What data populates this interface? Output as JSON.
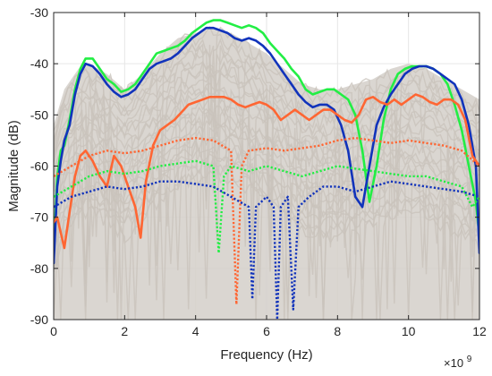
{
  "chart_data": {
    "type": "line",
    "title": "",
    "xlabel": "Frequency (Hz)",
    "ylabel": "Magnitude (dB)",
    "x_exponent_base": "×10",
    "x_exponent_power": "9",
    "xlim": [
      0,
      12
    ],
    "ylim": [
      -90,
      -30
    ],
    "xticks": [
      0,
      2,
      4,
      6,
      8,
      10,
      12
    ],
    "yticks": [
      -30,
      -40,
      -50,
      -60,
      -70,
      -80,
      -90
    ],
    "grid": true,
    "colors": {
      "background_series": "#d4cfc9",
      "green": "#22ee44",
      "blue": "#1133bb",
      "orange": "#ff6633",
      "grid": "#e6e6e6",
      "axis": "#262626"
    },
    "background_band": {
      "upper": [
        [
          0,
          -52
        ],
        [
          0.3,
          -45
        ],
        [
          0.7,
          -41
        ],
        [
          1,
          -40
        ],
        [
          1.5,
          -42
        ],
        [
          2,
          -45
        ],
        [
          2.5,
          -42
        ],
        [
          3,
          -38
        ],
        [
          3.5,
          -35
        ],
        [
          4,
          -34
        ],
        [
          4.5,
          -33
        ],
        [
          5,
          -34
        ],
        [
          5.5,
          -36
        ],
        [
          6,
          -38
        ],
        [
          6.5,
          -41
        ],
        [
          7,
          -44
        ],
        [
          7.5,
          -45
        ],
        [
          8,
          -45
        ],
        [
          8.5,
          -44
        ],
        [
          9,
          -43
        ],
        [
          9.5,
          -41
        ],
        [
          10,
          -40
        ],
        [
          10.5,
          -41
        ],
        [
          11,
          -43
        ],
        [
          11.5,
          -45
        ],
        [
          12,
          -47
        ]
      ],
      "lower": [
        [
          0,
          -90
        ],
        [
          12,
          -90
        ]
      ]
    },
    "series": [
      {
        "style": "solid",
        "color": "#22ee44",
        "x": [
          0,
          0.1,
          0.2,
          0.3,
          0.45,
          0.6,
          0.75,
          0.9,
          1.1,
          1.3,
          1.5,
          1.7,
          1.9,
          2.1,
          2.3,
          2.5,
          2.7,
          2.9,
          3.1,
          3.3,
          3.5,
          3.7,
          3.9,
          4.1,
          4.3,
          4.5,
          4.7,
          4.9,
          5.1,
          5.3,
          5.5,
          5.7,
          5.9,
          6.1,
          6.3,
          6.5,
          6.7,
          6.9,
          7.1,
          7.3,
          7.5,
          7.7,
          7.9,
          8.1,
          8.3,
          8.5,
          8.7,
          8.9,
          9.1,
          9.3,
          9.5,
          9.7,
          9.9,
          10.1,
          10.3,
          10.5,
          10.7,
          10.9,
          11.1,
          11.3,
          11.5,
          11.7,
          11.9,
          12
        ],
        "y": [
          -77,
          -62,
          -57,
          -56,
          -51,
          -45,
          -41,
          -39,
          -39,
          -41,
          -43,
          -44,
          -45.5,
          -45,
          -44,
          -42,
          -40,
          -38,
          -37.5,
          -37,
          -36.5,
          -35.5,
          -34,
          -33,
          -32,
          -31.5,
          -31.5,
          -32,
          -32.5,
          -33,
          -32.5,
          -33,
          -34,
          -36,
          -37.5,
          -39,
          -41,
          -42.5,
          -45,
          -46,
          -45.5,
          -45,
          -45,
          -46,
          -47,
          -50,
          -57,
          -67,
          -60,
          -51,
          -45,
          -42,
          -41,
          -40.5,
          -40.5,
          -40.5,
          -41,
          -42,
          -44,
          -48,
          -53,
          -60,
          -67,
          -74
        ]
      },
      {
        "style": "solid",
        "color": "#1133bb",
        "x": [
          0,
          0.1,
          0.2,
          0.3,
          0.45,
          0.6,
          0.75,
          0.9,
          1.1,
          1.3,
          1.5,
          1.7,
          1.9,
          2.1,
          2.3,
          2.5,
          2.7,
          2.9,
          3.1,
          3.3,
          3.5,
          3.7,
          3.9,
          4.1,
          4.3,
          4.5,
          4.7,
          4.9,
          5.1,
          5.3,
          5.5,
          5.7,
          5.9,
          6.1,
          6.3,
          6.5,
          6.7,
          6.9,
          7.1,
          7.3,
          7.5,
          7.7,
          7.9,
          8.1,
          8.3,
          8.5,
          8.7,
          8.9,
          9.1,
          9.3,
          9.5,
          9.7,
          9.9,
          10.1,
          10.3,
          10.5,
          10.7,
          10.9,
          11.1,
          11.3,
          11.5,
          11.7,
          11.9,
          12
        ],
        "y": [
          -79,
          -64,
          -59,
          -55,
          -52,
          -46,
          -42,
          -40,
          -40.5,
          -42,
          -44,
          -45.5,
          -46.5,
          -46,
          -45,
          -43,
          -41,
          -40,
          -39.5,
          -39,
          -38,
          -36.5,
          -35,
          -34,
          -33,
          -33,
          -33.5,
          -34,
          -35,
          -35.5,
          -35,
          -35.5,
          -36.5,
          -38,
          -40,
          -42,
          -44,
          -46,
          -47.5,
          -48.5,
          -48,
          -48,
          -49,
          -52,
          -57,
          -66,
          -68,
          -60,
          -52,
          -48.5,
          -46,
          -44,
          -42,
          -41,
          -40.5,
          -40.5,
          -41,
          -42,
          -43,
          -44,
          -47,
          -52,
          -60,
          -77
        ]
      },
      {
        "style": "solid",
        "color": "#ff6633",
        "x": [
          0,
          0.1,
          0.2,
          0.3,
          0.45,
          0.6,
          0.75,
          0.9,
          1.1,
          1.3,
          1.5,
          1.7,
          1.9,
          2.1,
          2.3,
          2.45,
          2.6,
          2.8,
          3.0,
          3.2,
          3.4,
          3.6,
          3.8,
          4.0,
          4.2,
          4.4,
          4.6,
          4.8,
          5.0,
          5.2,
          5.4,
          5.6,
          5.8,
          6.0,
          6.2,
          6.4,
          6.6,
          6.8,
          7.0,
          7.2,
          7.4,
          7.6,
          7.8,
          8.0,
          8.2,
          8.4,
          8.6,
          8.8,
          9.0,
          9.2,
          9.4,
          9.6,
          9.8,
          10.0,
          10.2,
          10.4,
          10.6,
          10.8,
          11.0,
          11.2,
          11.4,
          11.6,
          11.8,
          12
        ],
        "y": [
          -71,
          -70,
          -73,
          -76,
          -69,
          -62,
          -58,
          -57,
          -59,
          -62,
          -64,
          -58,
          -60,
          -64,
          -68,
          -74,
          -63,
          -56,
          -53,
          -52,
          -51,
          -49.5,
          -48,
          -47.5,
          -47,
          -46.5,
          -46.5,
          -46.5,
          -47,
          -48,
          -48.5,
          -48,
          -47.5,
          -48,
          -49,
          -51,
          -50,
          -49,
          -50,
          -51,
          -50,
          -49,
          -49,
          -50,
          -51,
          -51.5,
          -50,
          -47,
          -46.5,
          -47.5,
          -48,
          -47,
          -48,
          -47,
          -46,
          -46.5,
          -47.5,
          -48,
          -47,
          -47,
          -48,
          -51,
          -58,
          -60
        ]
      },
      {
        "style": "dotted",
        "color": "#ff6633",
        "x": [
          0,
          0.5,
          1.0,
          1.5,
          2.0,
          2.5,
          3.0,
          3.5,
          4.0,
          4.5,
          5.0,
          5.15,
          5.3,
          5.5,
          6.0,
          6.5,
          7.0,
          7.5,
          8.0,
          8.5,
          9.0,
          9.5,
          10.0,
          10.5,
          11.0,
          11.5,
          12
        ],
        "y": [
          -62,
          -60,
          -58,
          -57,
          -57.5,
          -57,
          -56,
          -55,
          -54.5,
          -55,
          -57,
          -87,
          -60,
          -57,
          -56.5,
          -57,
          -56.5,
          -56,
          -55,
          -54.5,
          -55,
          -55.5,
          -55,
          -55.5,
          -56,
          -57,
          -60
        ]
      },
      {
        "style": "dotted",
        "color": "#22ee44",
        "x": [
          0,
          0.5,
          1.0,
          1.5,
          2.0,
          2.5,
          3.0,
          3.5,
          4.0,
          4.5,
          4.65,
          4.8,
          5.0,
          5.5,
          6.0,
          6.5,
          7.0,
          7.5,
          8.0,
          8.5,
          9.0,
          9.5,
          10.0,
          10.5,
          11.0,
          11.5,
          11.8,
          12
        ],
        "y": [
          -66,
          -64,
          -62,
          -61,
          -61.5,
          -61,
          -60,
          -59.5,
          -59,
          -60,
          -77,
          -62,
          -60,
          -61,
          -60,
          -61,
          -62,
          -61,
          -60,
          -60.5,
          -61,
          -61.5,
          -62,
          -62,
          -63,
          -64,
          -68,
          -66
        ]
      },
      {
        "style": "dotted",
        "color": "#1133bb",
        "x": [
          0,
          0.5,
          1.0,
          1.5,
          2.0,
          2.5,
          3.0,
          3.5,
          4.0,
          4.5,
          5.0,
          5.5,
          5.6,
          5.7,
          6.0,
          6.2,
          6.3,
          6.4,
          6.6,
          6.75,
          6.9,
          7.2,
          7.6,
          8.0,
          8.5,
          9.0,
          9.5,
          10.0,
          10.5,
          11.0,
          11.5,
          12
        ],
        "y": [
          -68,
          -66,
          -65,
          -64,
          -64.5,
          -64,
          -63,
          -63,
          -63.5,
          -64,
          -66,
          -68,
          -86,
          -68,
          -66,
          -68,
          -90,
          -68,
          -66,
          -88,
          -68,
          -66,
          -64,
          -64,
          -65,
          -64,
          -63,
          -63.5,
          -64,
          -64.5,
          -65,
          -66
        ]
      }
    ]
  }
}
